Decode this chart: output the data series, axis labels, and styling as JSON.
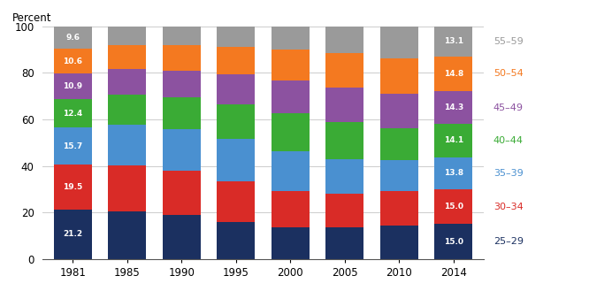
{
  "years": [
    "1981",
    "1985",
    "1990",
    "1995",
    "2000",
    "2005",
    "2010",
    "2014"
  ],
  "age_groups": [
    "25–29",
    "30–34",
    "35–39",
    "40–44",
    "45–49",
    "50–54",
    "55–59"
  ],
  "colors": [
    "#1b3060",
    "#d92b27",
    "#4a90d0",
    "#3aab35",
    "#8c52a0",
    "#f47920",
    "#9a9a9a"
  ],
  "label_colors": [
    "#1b3060",
    "#d92b27",
    "#4a90d0",
    "#3aab35",
    "#8c52a0",
    "#f47920",
    "#9a9a9a"
  ],
  "data": {
    "25–29": [
      21.2,
      20.5,
      18.8,
      15.9,
      13.6,
      13.5,
      14.2,
      15.0
    ],
    "30–34": [
      19.5,
      19.8,
      19.2,
      17.6,
      15.5,
      14.5,
      14.8,
      15.0
    ],
    "35–39": [
      15.7,
      17.5,
      17.8,
      18.1,
      17.0,
      14.8,
      13.4,
      13.8
    ],
    "40–44": [
      12.4,
      12.7,
      13.5,
      14.9,
      16.5,
      16.2,
      13.8,
      14.1
    ],
    "45–49": [
      10.9,
      11.0,
      11.5,
      12.9,
      14.2,
      14.8,
      14.6,
      14.3
    ],
    "50–54": [
      10.6,
      10.5,
      11.0,
      11.7,
      13.2,
      14.7,
      15.5,
      14.8
    ],
    "55–59": [
      9.6,
      8.0,
      8.2,
      8.9,
      10.0,
      11.5,
      13.7,
      13.1
    ]
  },
  "ylabel": "Percent",
  "ylim": [
    0,
    100
  ],
  "yticks": [
    0,
    20,
    40,
    60,
    80,
    100
  ],
  "bar_width": 0.7,
  "annotation_1981": [
    "21.2",
    "19.5",
    "15.7",
    "12.4",
    "10.9",
    "10.6",
    "9.6"
  ],
  "annotation_2014": [
    "15.0",
    "15.0",
    "13.8",
    "14.1",
    "14.3",
    "14.8",
    "13.1"
  ]
}
